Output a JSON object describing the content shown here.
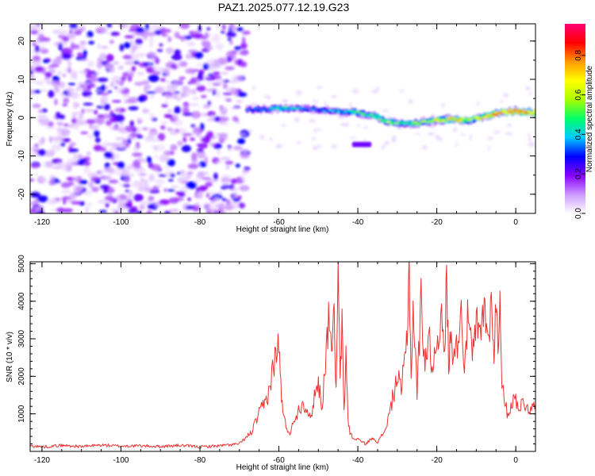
{
  "title": "PAZ1.2025.077.12.19.G23",
  "chart_data": [
    {
      "type": "heatmap",
      "title": "PAZ1.2025.077.12.19.G23",
      "xlabel": "Height of straight line (km)",
      "ylabel": "Frequency (Hz)",
      "xlim": [
        -123,
        5
      ],
      "ylim": [
        -25,
        24.5
      ],
      "xticks": [
        -120,
        -100,
        -80,
        -60,
        -40,
        -20,
        0
      ],
      "yticks": [
        -20,
        -10,
        0,
        10,
        20
      ],
      "colorbar": {
        "label": "Normalized spectral amplitude",
        "range": [
          0,
          0.96
        ],
        "ticks": [
          0.0,
          0.2,
          0.4,
          0.6,
          0.8
        ],
        "colors": [
          "#ffffff",
          "#cc99ff",
          "#8800ff",
          "#0000ff",
          "#00ccff",
          "#00ff66",
          "#aaff00",
          "#ffff00",
          "#ff9900",
          "#ff0000",
          "#ff0077"
        ]
      },
      "noise_region_x": [
        -123,
        -68
      ],
      "signal_ridge": {
        "x": [
          -68,
          -64,
          -60,
          -56,
          -52,
          -48,
          -44,
          -40,
          -36,
          -32,
          -28,
          -24,
          -20,
          -16,
          -12,
          -8,
          -4,
          0,
          4
        ],
        "frequency": [
          2,
          2.2,
          2.3,
          2.4,
          2.2,
          1.9,
          1.6,
          1.3,
          0.5,
          -1.2,
          -1.6,
          -1.3,
          -0.6,
          -0.4,
          -0.6,
          0.3,
          1.2,
          1.8,
          1.4
        ],
        "amplitude": [
          0.35,
          0.4,
          0.5,
          0.45,
          0.35,
          0.4,
          0.45,
          0.55,
          0.5,
          0.65,
          0.55,
          0.6,
          0.7,
          0.75,
          0.7,
          0.8,
          0.85,
          0.9,
          0.85
        ]
      },
      "secondary_feature": {
        "x": [
          -41,
          -37
        ],
        "frequency": -7
      }
    },
    {
      "type": "line",
      "xlabel": "Height of straight line (km)",
      "ylabel": "SNR (10 * v/v)",
      "xlim": [
        -123,
        5
      ],
      "ylim": [
        0,
        5050
      ],
      "xticks": [
        -120,
        -100,
        -80,
        -60,
        -40,
        -20,
        0
      ],
      "yticks": [
        1000,
        2000,
        3000,
        4000,
        5000
      ],
      "series": [
        {
          "color": "#ee3333",
          "x": [
            -123,
            -120,
            -115,
            -110,
            -105,
            -100,
            -95,
            -90,
            -85,
            -80,
            -75,
            -70,
            -67,
            -65,
            -63,
            -62,
            -61,
            -60,
            -59.5,
            -59,
            -58,
            -57,
            -56,
            -55,
            -54,
            -53,
            -52,
            -51,
            -50,
            -49,
            -48,
            -47,
            -46.5,
            -46,
            -45.5,
            -45,
            -44.5,
            -44,
            -43.5,
            -43,
            -42.5,
            -42,
            -41,
            -40,
            -39,
            -38,
            -37,
            -36,
            -35,
            -34,
            -33,
            -32,
            -31,
            -30,
            -29,
            -28,
            -27.5,
            -27,
            -26.5,
            -26,
            -25,
            -24,
            -23,
            -22,
            -21,
            -20,
            -19,
            -18,
            -17.5,
            -17,
            -16.5,
            -16,
            -15,
            -14,
            -13,
            -12,
            -11,
            -10,
            -9,
            -8,
            -7,
            -6,
            -5.5,
            -5,
            -4.5,
            -4,
            -3.5,
            -3,
            -2,
            -1,
            0,
            1,
            2,
            3,
            4,
            5
          ],
          "y": [
            150,
            120,
            160,
            130,
            170,
            140,
            150,
            130,
            160,
            120,
            150,
            200,
            500,
            1000,
            1400,
            1900,
            2500,
            2800,
            1800,
            1000,
            600,
            500,
            900,
            1100,
            1300,
            1200,
            800,
            1500,
            1800,
            1200,
            2800,
            3800,
            2500,
            3700,
            1500,
            4600,
            2000,
            3300,
            1000,
            2600,
            900,
            500,
            300,
            350,
            250,
            200,
            300,
            350,
            250,
            400,
            600,
            1000,
            1500,
            2000,
            1600,
            2500,
            3200,
            5000,
            2000,
            3800,
            1600,
            4000,
            2400,
            3000,
            2200,
            3000,
            3600,
            2500,
            4800,
            2200,
            3100,
            2800,
            2700,
            3900,
            2400,
            3700,
            2400,
            3400,
            3000,
            3900,
            3000,
            4100,
            2500,
            4000,
            2800,
            4100,
            2000,
            1300,
            1000,
            1300,
            1400,
            1200,
            1300,
            1200,
            1100,
            1250
          ]
        }
      ]
    }
  ]
}
